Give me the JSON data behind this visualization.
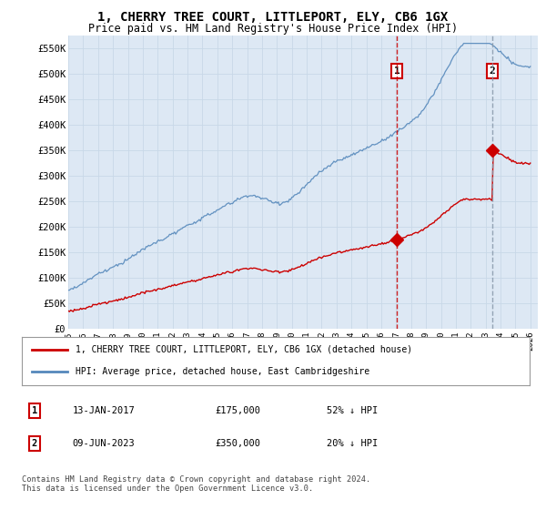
{
  "title": "1, CHERRY TREE COURT, LITTLEPORT, ELY, CB6 1GX",
  "subtitle": "Price paid vs. HM Land Registry's House Price Index (HPI)",
  "xlim_start": 1995.0,
  "xlim_end": 2026.5,
  "ylim_min": 0,
  "ylim_max": 575000,
  "yticks": [
    0,
    50000,
    100000,
    150000,
    200000,
    250000,
    300000,
    350000,
    400000,
    450000,
    500000,
    550000
  ],
  "ytick_labels": [
    "£0",
    "£50K",
    "£100K",
    "£150K",
    "£200K",
    "£250K",
    "£300K",
    "£350K",
    "£400K",
    "£450K",
    "£500K",
    "£550K"
  ],
  "xticks": [
    1995,
    1996,
    1997,
    1998,
    1999,
    2000,
    2001,
    2002,
    2003,
    2004,
    2005,
    2006,
    2007,
    2008,
    2009,
    2010,
    2011,
    2012,
    2013,
    2014,
    2015,
    2016,
    2017,
    2018,
    2019,
    2020,
    2021,
    2022,
    2023,
    2024,
    2025,
    2026
  ],
  "sale1_x": 2017.04,
  "sale1_y": 175000,
  "sale1_label": "1",
  "sale1_date": "13-JAN-2017",
  "sale1_price": "£175,000",
  "sale1_hpi": "52% ↓ HPI",
  "sale2_x": 2023.44,
  "sale2_y": 350000,
  "sale2_label": "2",
  "sale2_date": "09-JUN-2023",
  "sale2_price": "£350,000",
  "sale2_hpi": "20% ↓ HPI",
  "red_color": "#cc0000",
  "blue_color": "#5588bb",
  "vline1_color": "#cc0000",
  "vline2_color": "#8899aa",
  "grid_color": "#c8d8e8",
  "chart_bg": "#dde8f4",
  "plot_bg": "#ffffff",
  "legend_label_red": "1, CHERRY TREE COURT, LITTLEPORT, ELY, CB6 1GX (detached house)",
  "legend_label_blue": "HPI: Average price, detached house, East Cambridgeshire",
  "footer": "Contains HM Land Registry data © Crown copyright and database right 2024.\nThis data is licensed under the Open Government Licence v3.0."
}
